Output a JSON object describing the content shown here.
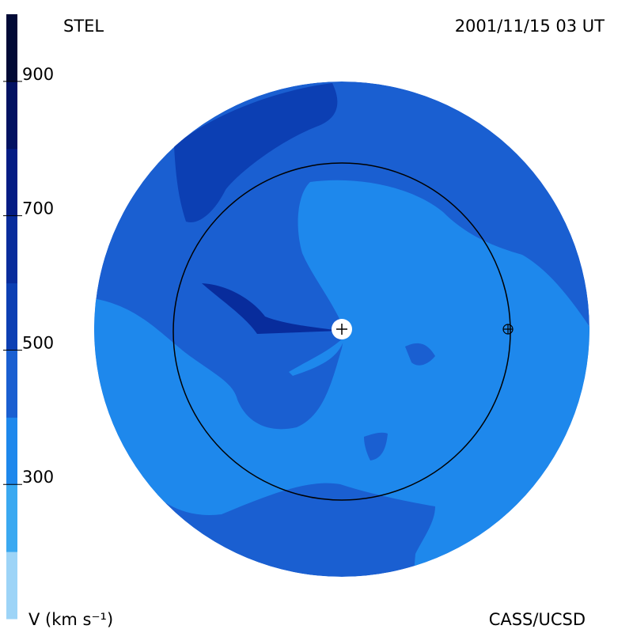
{
  "chart_data": {
    "type": "colormap",
    "title": "STEL",
    "subtitle": "2001/11/15 03 UT",
    "colorbar_label": "V (km s⁻¹)",
    "credit": "CASS/UCSD",
    "zlim": [
      100,
      1000
    ],
    "zticks": [
      300,
      500,
      700,
      900
    ],
    "bins": [
      100,
      200,
      300,
      400,
      500,
      600,
      700,
      800,
      900,
      1000
    ],
    "colors": [
      "#9dd4f7",
      "#3aa9f1",
      "#1e88ec",
      "#1a5fd1",
      "#0c3fb3",
      "#082c9c",
      "#041c84",
      "#021262",
      "#010a36"
    ]
  }
}
